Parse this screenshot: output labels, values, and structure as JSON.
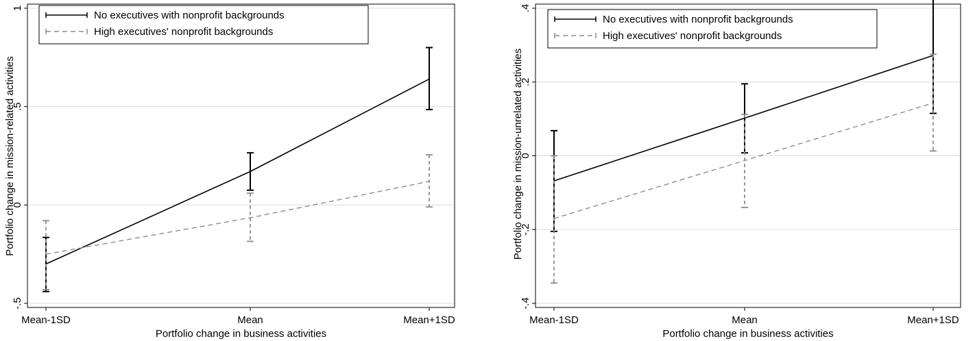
{
  "chart_data": [
    {
      "type": "line",
      "title": "",
      "xlabel": "Portfolio change in business activities",
      "ylabel": "Portfolio change in mission-related activities",
      "categories": [
        "Mean-1SD",
        "Mean",
        "Mean+1SD"
      ],
      "ylim": [
        -0.5,
        1
      ],
      "yticks": [
        -0.5,
        0,
        0.5,
        1
      ],
      "ytick_labels": [
        "-.5",
        "0",
        ".5",
        "1"
      ],
      "grid": true,
      "legend_position": "top-left",
      "series": [
        {
          "name": "No executives with nonprofit backgrounds",
          "style": "solid",
          "color": "#000000",
          "values": [
            -0.3,
            0.17,
            0.64
          ],
          "ci_low": [
            -0.44,
            0.075,
            0.485
          ],
          "ci_high": [
            -0.165,
            0.265,
            0.8
          ]
        },
        {
          "name": "High executives' nonprofit backgrounds",
          "style": "dashed",
          "color": "#8c8c8c",
          "values": [
            -0.25,
            -0.065,
            0.12
          ],
          "ci_low": [
            -0.43,
            -0.185,
            -0.01
          ],
          "ci_high": [
            -0.08,
            0.06,
            0.255
          ]
        }
      ]
    },
    {
      "type": "line",
      "title": "",
      "xlabel": "Portfolio change in business activities",
      "ylabel": "Portfolio change in mission-unrelated activities",
      "categories": [
        "Mean-1SD",
        "Mean",
        "Mean+1SD"
      ],
      "ylim": [
        -0.4,
        0.4
      ],
      "yticks": [
        -0.4,
        -0.2,
        0,
        0.2,
        0.4
      ],
      "ytick_labels": [
        "-.4",
        "-.2",
        "0",
        ".2",
        ".4"
      ],
      "grid": true,
      "legend_position": "top-left",
      "series": [
        {
          "name": "No executives with nonprofit backgrounds",
          "style": "solid",
          "color": "#000000",
          "values": [
            -0.068,
            0.102,
            0.272
          ],
          "ci_low": [
            -0.205,
            0.008,
            0.115
          ],
          "ci_high": [
            0.068,
            0.195,
            0.427
          ]
        },
        {
          "name": "High executives' nonprofit backgrounds",
          "style": "dashed",
          "color": "#8c8c8c",
          "values": [
            -0.17,
            -0.013,
            0.143
          ],
          "ci_low": [
            -0.345,
            -0.14,
            0.013
          ],
          "ci_high": [
            0.0,
            0.112,
            0.275
          ]
        }
      ]
    }
  ]
}
